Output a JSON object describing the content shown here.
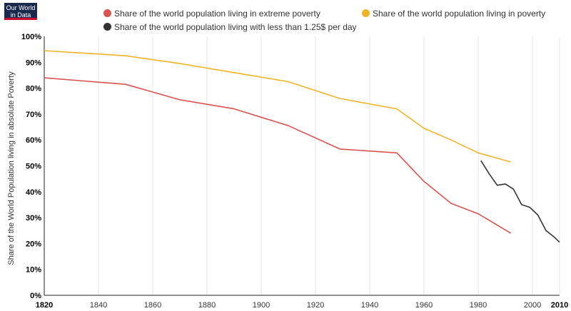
{
  "logo": {
    "line1": "Our World",
    "line2": "in Data"
  },
  "colors": {
    "extreme": "#d9534f",
    "poverty": "#f0b429",
    "dollar": "#333333",
    "grid": "#e6e6e6",
    "axis": "#222222"
  },
  "chart_data": {
    "type": "line",
    "ylabel": "Share of the World Population living in absolute Poverty",
    "xlim": [
      1820,
      2010
    ],
    "ylim": [
      0,
      100
    ],
    "x_ticks": [
      "1820",
      "1840",
      "1860",
      "1880",
      "1900",
      "1920",
      "1940",
      "1960",
      "1980",
      "2000",
      "2010"
    ],
    "y_ticks": [
      "0%",
      "10%",
      "20%",
      "30%",
      "40%",
      "50%",
      "60%",
      "70%",
      "80%",
      "90%",
      "100%"
    ],
    "legend_position": "top",
    "series": [
      {
        "name": "Share of the world population living in extreme poverty",
        "color": "#d9534f",
        "points": [
          [
            1820,
            84
          ],
          [
            1850,
            81.5
          ],
          [
            1870,
            75.5
          ],
          [
            1890,
            72
          ],
          [
            1910,
            65.5
          ],
          [
            1929,
            56.5
          ],
          [
            1950,
            55
          ],
          [
            1960,
            44
          ],
          [
            1970,
            35.5
          ],
          [
            1980,
            31.5
          ],
          [
            1992,
            24
          ]
        ]
      },
      {
        "name": "Share of the world population living in poverty",
        "color": "#f0b429",
        "points": [
          [
            1820,
            94.5
          ],
          [
            1850,
            92.5
          ],
          [
            1870,
            89.5
          ],
          [
            1890,
            86
          ],
          [
            1910,
            82.5
          ],
          [
            1929,
            76
          ],
          [
            1950,
            72
          ],
          [
            1960,
            64.5
          ],
          [
            1970,
            60
          ],
          [
            1980,
            55
          ],
          [
            1992,
            51.5
          ]
        ]
      },
      {
        "name": "Share of the world population living with less than 1.25$ per day",
        "color": "#333333",
        "points": [
          [
            1981,
            52
          ],
          [
            1984,
            47
          ],
          [
            1987,
            42.5
          ],
          [
            1990,
            43
          ],
          [
            1993,
            41
          ],
          [
            1996,
            35
          ],
          [
            1999,
            34
          ],
          [
            2002,
            31
          ],
          [
            2005,
            25
          ],
          [
            2008,
            22.5
          ],
          [
            2010,
            20.5
          ]
        ]
      }
    ]
  }
}
